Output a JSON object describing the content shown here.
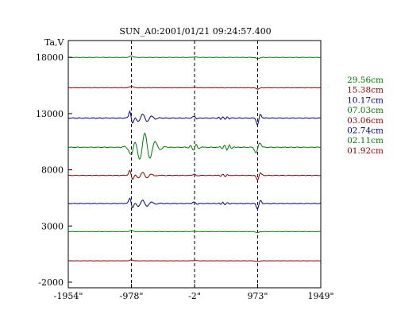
{
  "chart_data": {
    "type": "line",
    "title": "SUN_A0:2001/01/21 09:24:57.400",
    "ylabel": "Ta,V",
    "xlabel": "",
    "xlim": [
      -1954,
      1949
    ],
    "ylim": [
      -2500,
      19500
    ],
    "x_ticks": [
      -1954,
      -978,
      -2,
      973,
      1949
    ],
    "x_tick_labels": [
      "-1954\"",
      "-978\"",
      "-2\"",
      "973\"",
      "1949\""
    ],
    "y_ticks": [
      18000,
      13000,
      8000,
      3000,
      -2000
    ],
    "y_tick_labels": [
      "18000",
      "13000",
      "8000",
      "3000",
      "-2000"
    ],
    "vlines": [
      -978,
      -2,
      973
    ],
    "legend_position": "right",
    "series": [
      {
        "name": "29.56cm",
        "color": "#007a00",
        "baseline": 18000,
        "profile": "smooth",
        "amp": 1.0
      },
      {
        "name": "15.38cm",
        "color": "#8b0000",
        "baseline": 15300,
        "profile": "smooth",
        "amp": 1.0
      },
      {
        "name": "10.17cm",
        "color": "#00007f",
        "baseline": 12600,
        "profile": "active",
        "amp": 1.0
      },
      {
        "name": "07.03cm",
        "color": "#007a00",
        "baseline": 10000,
        "profile": "oscillating",
        "amp": 1.0
      },
      {
        "name": "03.06cm",
        "color": "#8b0000",
        "baseline": 7500,
        "profile": "active",
        "amp": 0.7
      },
      {
        "name": "02.74cm",
        "color": "#00007f",
        "baseline": 5000,
        "profile": "active",
        "amp": 0.8
      },
      {
        "name": "02.11cm",
        "color": "#007a00",
        "baseline": 2500,
        "profile": "smooth",
        "amp": 0.8
      },
      {
        "name": "01.92cm",
        "color": "#8b0000",
        "baseline": -100,
        "profile": "smooth",
        "amp": 0.6
      }
    ]
  }
}
